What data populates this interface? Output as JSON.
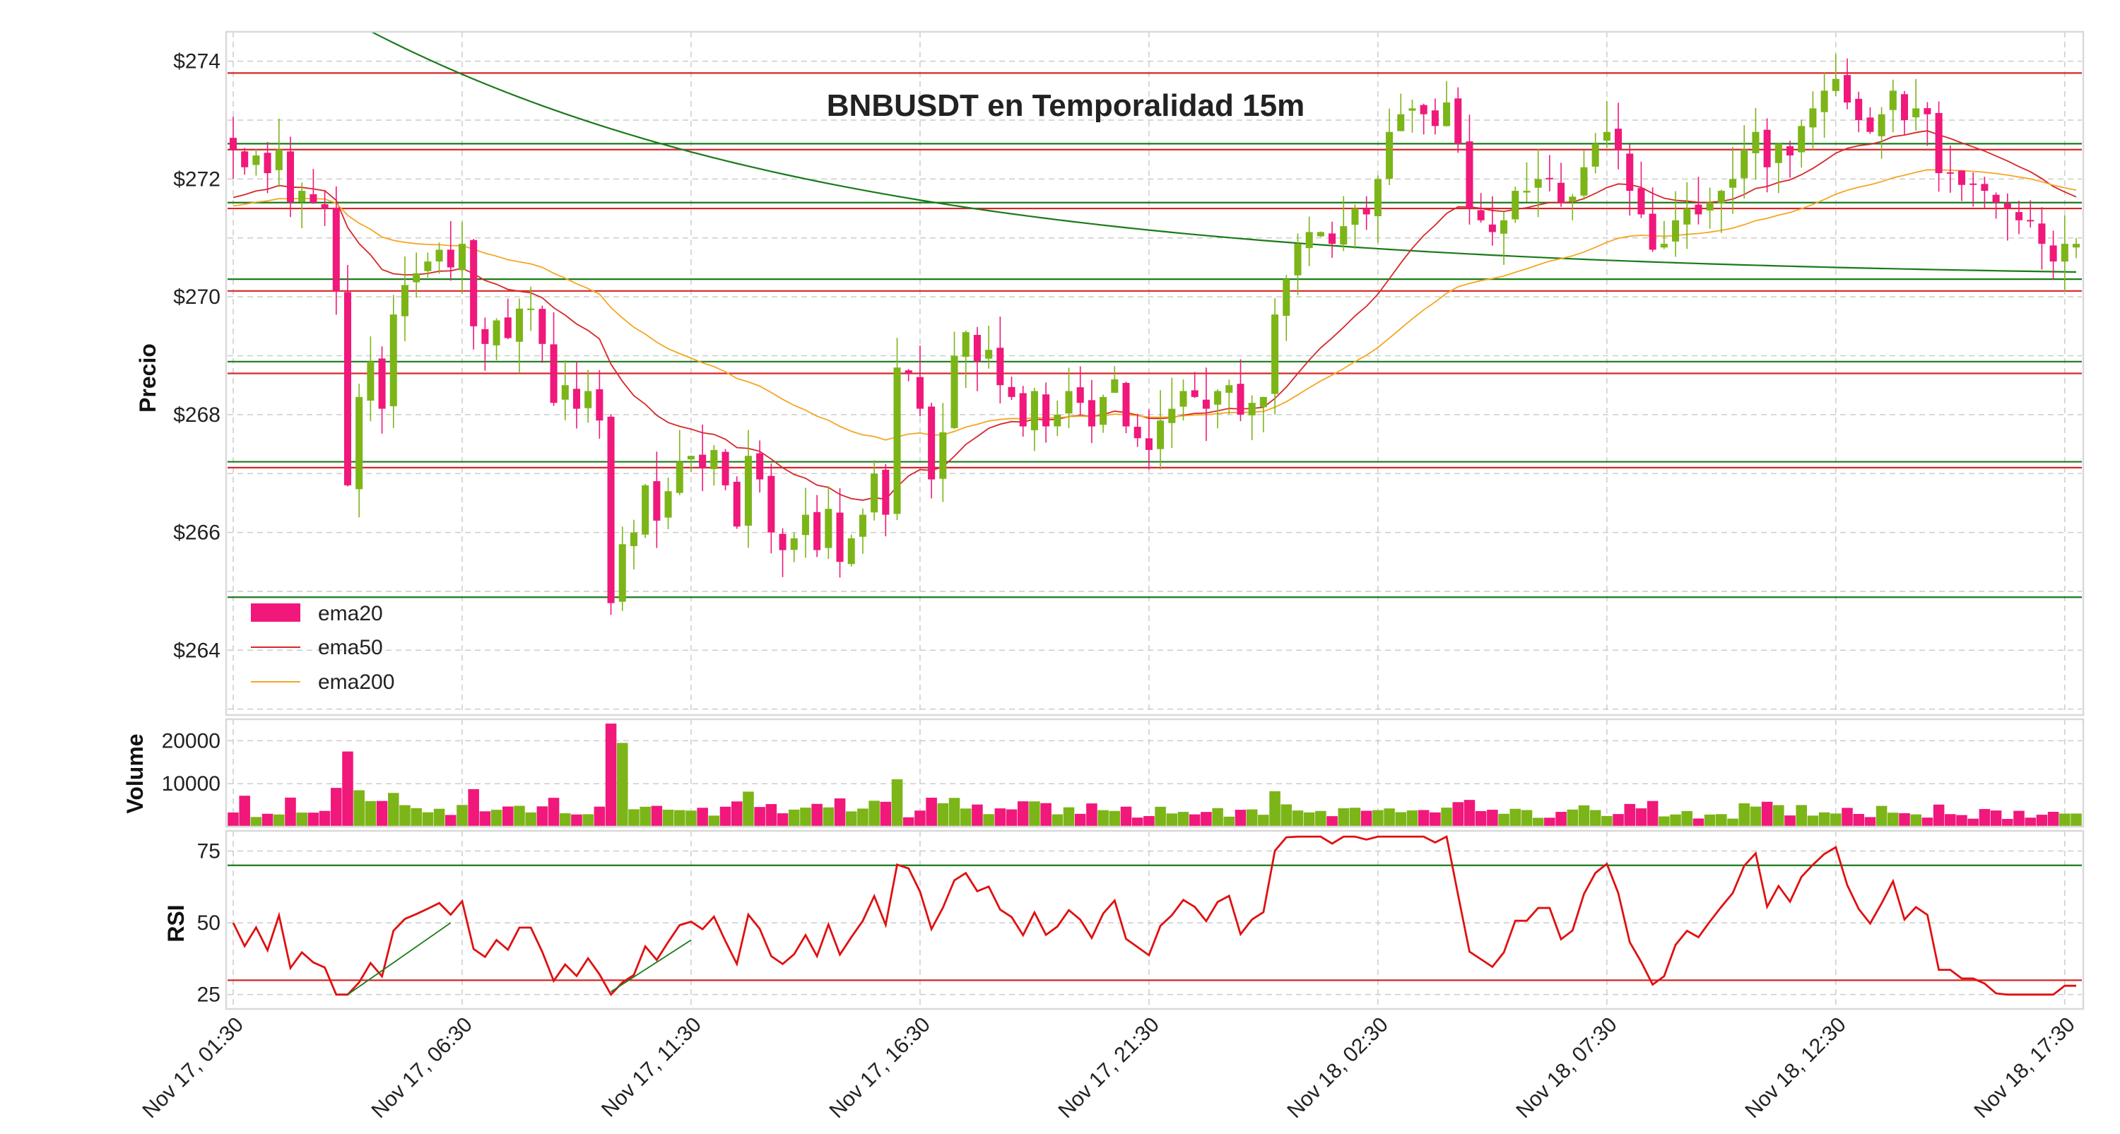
{
  "colors": {
    "up_candle": "#7cb518",
    "down_candle": "#f0187a",
    "ema20": "#f0187a",
    "ema50": "#d62728",
    "ema200": "#f5a623",
    "green_level": "#1a7a1a",
    "red_level": "#d62728",
    "long_ema": "#1a7a1a",
    "rsi_line": "#e01010",
    "grid": "#cccccc",
    "frame": "#d9d9d9"
  },
  "chart_data": {
    "type": "candlestick",
    "title": "BNBUSDT en Temporalidad 15m",
    "panels": {
      "price": {
        "ylabel": "Precio",
        "ylim": [
          262.9,
          274.5
        ],
        "ticks": [
          264,
          266,
          268,
          270,
          272,
          274
        ],
        "tick_labels": [
          "$264",
          "$266",
          "$268",
          "$270",
          "$272",
          "$274"
        ]
      },
      "volume": {
        "ylabel": "Volume",
        "ylim": [
          0,
          25000
        ],
        "ticks": [
          10000,
          20000
        ],
        "tick_labels": [
          "10000",
          "20000"
        ]
      },
      "rsi": {
        "ylabel": "RSI",
        "ylim": [
          20,
          82
        ],
        "ticks": [
          25,
          50,
          75
        ],
        "tick_labels": [
          "25",
          "50",
          "75"
        ],
        "overbought": 70,
        "oversold": 30
      }
    },
    "x_ticks": [
      {
        "index": 0,
        "label": "Nov 17, 01:30"
      },
      {
        "index": 20,
        "label": "Nov 17, 06:30"
      },
      {
        "index": 40,
        "label": "Nov 17, 11:30"
      },
      {
        "index": 60,
        "label": "Nov 17, 16:30"
      },
      {
        "index": 80,
        "label": "Nov 17, 21:30"
      },
      {
        "index": 100,
        "label": "Nov 18, 02:30"
      },
      {
        "index": 120,
        "label": "Nov 18, 07:30"
      },
      {
        "index": 140,
        "label": "Nov 18, 12:30"
      },
      {
        "index": 160,
        "label": "Nov 18, 17:30"
      }
    ],
    "legend": {
      "placement": "lower-left",
      "entries": [
        {
          "label": "ema20",
          "style": "patch",
          "color": "#f0187a"
        },
        {
          "label": "ema50",
          "style": "line",
          "color": "#d62728"
        },
        {
          "label": "ema200",
          "style": "line",
          "color": "#f5a623"
        }
      ]
    },
    "green_levels": [
      272.6,
      271.6,
      270.3,
      268.9,
      267.2,
      264.9
    ],
    "red_levels": [
      273.8,
      272.5,
      271.5,
      270.1,
      268.7,
      267.1
    ],
    "closes": [
      272.5,
      272.2,
      272.4,
      272.1,
      272.5,
      271.6,
      271.8,
      271.6,
      271.5,
      270.1,
      266.8,
      268.3,
      268.9,
      268.1,
      269.7,
      270.2,
      270.4,
      270.6,
      270.8,
      270.5,
      270.9,
      269.5,
      269.2,
      269.6,
      269.3,
      269.8,
      269.8,
      269.2,
      268.2,
      268.5,
      268.1,
      268.4,
      267.9,
      264.8,
      265.8,
      266.0,
      266.8,
      266.2,
      266.7,
      267.2,
      267.3,
      267.1,
      267.4,
      266.8,
      266.1,
      267.3,
      266.9,
      266.0,
      265.7,
      265.9,
      266.3,
      265.7,
      266.4,
      265.5,
      265.9,
      266.3,
      267.0,
      266.3,
      268.8,
      268.7,
      268.1,
      266.9,
      267.7,
      269.0,
      269.4,
      268.9,
      269.1,
      268.5,
      268.3,
      267.8,
      268.4,
      267.8,
      268.0,
      268.4,
      268.2,
      267.8,
      268.3,
      268.6,
      267.8,
      267.6,
      267.4,
      267.9,
      268.1,
      268.4,
      268.3,
      268.1,
      268.4,
      268.5,
      268.0,
      268.2,
      268.3,
      269.7,
      270.3,
      270.9,
      271.1,
      271.1,
      270.9,
      271.2,
      271.5,
      271.4,
      272.0,
      272.8,
      273.1,
      273.2,
      273.1,
      272.9,
      273.3,
      272.6,
      271.5,
      271.3,
      271.1,
      271.3,
      271.8,
      271.8,
      272.0,
      272.0,
      271.6,
      271.7,
      272.2,
      272.6,
      272.8,
      272.5,
      271.8,
      271.4,
      270.8,
      270.9,
      271.3,
      271.5,
      271.4,
      271.6,
      271.8,
      272.0,
      272.5,
      272.8,
      272.2,
      272.6,
      272.4,
      272.9,
      273.2,
      273.5,
      273.7,
      273.3,
      273.0,
      272.8,
      273.1,
      273.5,
      273.0,
      273.2,
      273.1,
      272.1,
      272.1,
      271.9,
      271.9,
      271.8,
      271.6,
      271.5,
      271.3,
      271.3,
      270.9,
      270.6,
      270.9,
      270.9
    ]
  }
}
